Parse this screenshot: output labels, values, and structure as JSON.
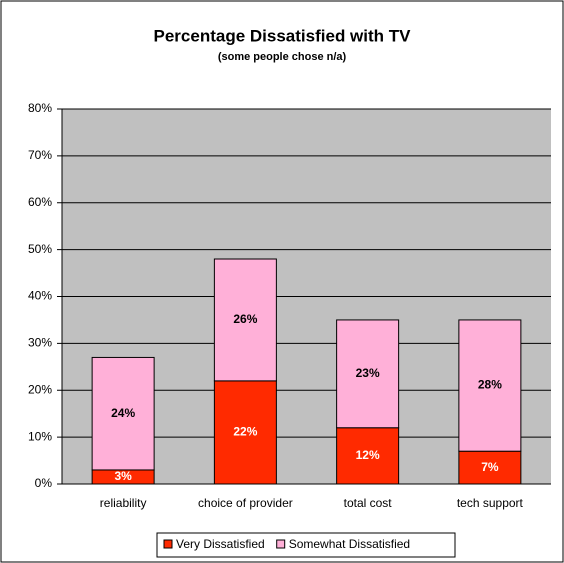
{
  "chart_data": {
    "type": "stacked_bar",
    "title": "Percentage Dissatisfied with TV",
    "subtitle": "(some people chose n/a)",
    "categories": [
      "reliability",
      "choice of provider",
      "total cost",
      "tech support"
    ],
    "series": [
      {
        "name": "Very Dissatisfied",
        "color": "#ff2a00",
        "values": [
          3,
          22,
          12,
          7
        ],
        "value_labels": [
          "3%",
          "22%",
          "12%",
          "7%"
        ]
      },
      {
        "name": "Somewhat Dissatisfied",
        "color": "#ffb0d8",
        "values": [
          24,
          26,
          23,
          28
        ],
        "value_labels": [
          "24%",
          "26%",
          "23%",
          "28%"
        ]
      }
    ],
    "ylim": [
      0,
      80
    ],
    "yticks": [
      {
        "value": 0,
        "label": "0%"
      },
      {
        "value": 10,
        "label": "10%"
      },
      {
        "value": 20,
        "label": "20%"
      },
      {
        "value": 30,
        "label": "30%"
      },
      {
        "value": 40,
        "label": "40%"
      },
      {
        "value": 50,
        "label": "50%"
      },
      {
        "value": 60,
        "label": "60%"
      },
      {
        "value": 70,
        "label": "70%"
      },
      {
        "value": 80,
        "label": "80%"
      }
    ],
    "grid": true,
    "legend": "bottom",
    "plot_background": "#c0c0c0"
  }
}
